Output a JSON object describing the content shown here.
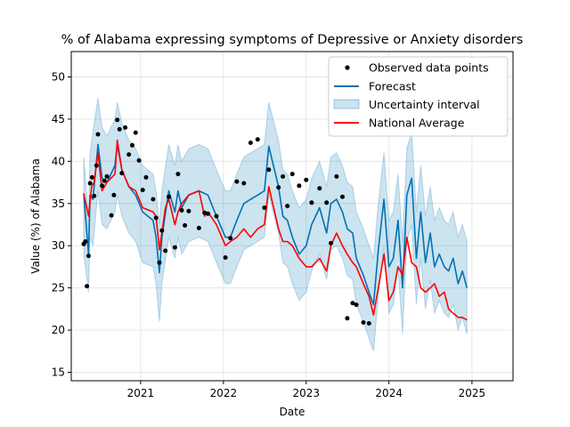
{
  "chart_data": {
    "type": "line",
    "title": "% of Alabama expressing symptoms of Depressive or Anxiety disorders",
    "xlabel": "Date",
    "ylabel": "Value (%) of Alabama",
    "xlim": [
      "2020-03-01",
      "2025-07-01"
    ],
    "ylim": [
      14,
      53
    ],
    "x_ticks": [
      "2021-01-01",
      "2022-01-01",
      "2023-01-01",
      "2024-01-01",
      "2025-01-01"
    ],
    "x_tick_labels": [
      "2021",
      "2022",
      "2023",
      "2024",
      "2025"
    ],
    "y_ticks": [
      15,
      20,
      25,
      30,
      35,
      40,
      45,
      50
    ],
    "y_tick_labels": [
      "15",
      "20",
      "25",
      "30",
      "35",
      "40",
      "45",
      "50"
    ],
    "grid": true,
    "legend_position": "top-right",
    "legend": [
      "Observed data points",
      "Forecast",
      "Uncertainty interval",
      "National Average"
    ],
    "colors": {
      "observed": "#000000",
      "forecast": "#0072b2",
      "interval": "#0072b2",
      "national": "#ff0000"
    },
    "observed": [
      [
        "2020-04-25",
        30.2
      ],
      [
        "2020-05-02",
        30.5
      ],
      [
        "2020-05-09",
        25.2
      ],
      [
        "2020-05-16",
        28.8
      ],
      [
        "2020-05-23",
        37.4
      ],
      [
        "2020-06-01",
        38.1
      ],
      [
        "2020-06-10",
        35.9
      ],
      [
        "2020-06-20",
        39.5
      ],
      [
        "2020-06-27",
        43.2
      ],
      [
        "2020-07-15",
        37.1
      ],
      [
        "2020-07-25",
        37.7
      ],
      [
        "2020-08-05",
        38.2
      ],
      [
        "2020-08-25",
        33.6
      ],
      [
        "2020-09-05",
        36.0
      ],
      [
        "2020-09-20",
        44.9
      ],
      [
        "2020-09-30",
        43.8
      ],
      [
        "2020-10-10",
        38.6
      ],
      [
        "2020-10-25",
        44.0
      ],
      [
        "2020-11-10",
        40.8
      ],
      [
        "2020-11-25",
        41.9
      ],
      [
        "2020-12-10",
        43.4
      ],
      [
        "2020-12-25",
        40.1
      ],
      [
        "2021-01-10",
        36.6
      ],
      [
        "2021-01-25",
        38.1
      ],
      [
        "2021-02-25",
        35.5
      ],
      [
        "2021-03-10",
        33.3
      ],
      [
        "2021-03-25",
        28.0
      ],
      [
        "2021-04-05",
        31.8
      ],
      [
        "2021-04-20",
        29.4
      ],
      [
        "2021-05-05",
        35.8
      ],
      [
        "2021-06-01",
        29.8
      ],
      [
        "2021-06-15",
        38.5
      ],
      [
        "2021-07-01",
        34.2
      ],
      [
        "2021-07-15",
        32.4
      ],
      [
        "2021-08-01",
        34.1
      ],
      [
        "2021-09-15",
        32.1
      ],
      [
        "2021-10-10",
        33.9
      ],
      [
        "2021-10-25",
        33.8
      ],
      [
        "2021-12-01",
        33.5
      ],
      [
        "2022-01-10",
        28.6
      ],
      [
        "2022-02-01",
        30.9
      ],
      [
        "2022-03-01",
        37.6
      ],
      [
        "2022-04-01",
        37.4
      ],
      [
        "2022-05-01",
        42.2
      ],
      [
        "2022-06-01",
        42.6
      ],
      [
        "2022-07-01",
        34.5
      ],
      [
        "2022-07-20",
        39.0
      ],
      [
        "2022-09-01",
        36.9
      ],
      [
        "2022-09-20",
        38.2
      ],
      [
        "2022-10-10",
        34.7
      ],
      [
        "2022-11-01",
        38.5
      ],
      [
        "2022-12-01",
        37.1
      ],
      [
        "2023-01-01",
        37.8
      ],
      [
        "2023-01-25",
        35.1
      ],
      [
        "2023-03-01",
        36.8
      ],
      [
        "2023-04-01",
        35.1
      ],
      [
        "2023-04-20",
        30.3
      ],
      [
        "2023-05-15",
        38.2
      ],
      [
        "2023-06-10",
        35.8
      ],
      [
        "2023-07-01",
        21.4
      ],
      [
        "2023-07-25",
        23.2
      ],
      [
        "2023-08-10",
        23.0
      ],
      [
        "2023-09-10",
        20.9
      ],
      [
        "2023-10-05",
        20.8
      ]
    ],
    "forecast": [
      [
        "2020-04-25",
        36.2
      ],
      [
        "2020-05-16",
        29.0
      ],
      [
        "2020-05-23",
        36.0
      ],
      [
        "2020-06-05",
        35.5
      ],
      [
        "2020-06-27",
        42.0
      ],
      [
        "2020-07-15",
        38.0
      ],
      [
        "2020-08-05",
        37.5
      ],
      [
        "2020-09-10",
        39.5
      ],
      [
        "2020-09-20",
        42.0
      ],
      [
        "2020-10-10",
        39.0
      ],
      [
        "2020-11-10",
        37.0
      ],
      [
        "2020-12-10",
        36.0
      ],
      [
        "2021-01-10",
        34.0
      ],
      [
        "2021-02-25",
        33.0
      ],
      [
        "2021-03-10",
        31.0
      ],
      [
        "2021-03-25",
        26.8
      ],
      [
        "2021-04-05",
        31.0
      ],
      [
        "2021-05-05",
        36.5
      ],
      [
        "2021-06-01",
        34.0
      ],
      [
        "2021-06-15",
        36.5
      ],
      [
        "2021-07-01",
        34.5
      ],
      [
        "2021-08-01",
        36.0
      ],
      [
        "2021-09-15",
        36.5
      ],
      [
        "2021-10-25",
        36.0
      ],
      [
        "2021-12-01",
        33.5
      ],
      [
        "2022-01-10",
        31.0
      ],
      [
        "2022-02-01",
        31.0
      ],
      [
        "2022-03-01",
        33.0
      ],
      [
        "2022-04-01",
        35.0
      ],
      [
        "2022-05-01",
        35.5
      ],
      [
        "2022-06-01",
        36.0
      ],
      [
        "2022-07-01",
        36.5
      ],
      [
        "2022-07-20",
        41.8
      ],
      [
        "2022-09-01",
        37.0
      ],
      [
        "2022-09-20",
        33.5
      ],
      [
        "2022-10-10",
        33.0
      ],
      [
        "2022-11-01",
        31.0
      ],
      [
        "2022-12-01",
        29.0
      ],
      [
        "2023-01-01",
        30.0
      ],
      [
        "2023-01-25",
        32.5
      ],
      [
        "2023-03-01",
        34.5
      ],
      [
        "2023-04-01",
        31.5
      ],
      [
        "2023-04-20",
        35.0
      ],
      [
        "2023-05-15",
        35.5
      ],
      [
        "2023-06-10",
        34.0
      ],
      [
        "2023-07-01",
        32.0
      ],
      [
        "2023-07-25",
        31.5
      ],
      [
        "2023-08-10",
        28.5
      ],
      [
        "2023-09-10",
        26.5
      ],
      [
        "2023-10-05",
        24.5
      ],
      [
        "2023-10-25",
        23.0
      ],
      [
        "2023-11-15",
        29.5
      ],
      [
        "2023-12-10",
        35.5
      ],
      [
        "2024-01-01",
        27.5
      ],
      [
        "2024-01-20",
        28.5
      ],
      [
        "2024-02-10",
        33.0
      ],
      [
        "2024-03-01",
        25.0
      ],
      [
        "2024-03-20",
        36.0
      ],
      [
        "2024-04-10",
        38.0
      ],
      [
        "2024-05-01",
        28.5
      ],
      [
        "2024-05-20",
        34.0
      ],
      [
        "2024-06-10",
        28.0
      ],
      [
        "2024-07-01",
        31.5
      ],
      [
        "2024-07-20",
        27.5
      ],
      [
        "2024-08-10",
        29.0
      ],
      [
        "2024-09-01",
        27.5
      ],
      [
        "2024-09-20",
        27.0
      ],
      [
        "2024-10-10",
        28.5
      ],
      [
        "2024-11-01",
        25.5
      ],
      [
        "2024-11-20",
        27.0
      ],
      [
        "2024-12-10",
        25.0
      ]
    ],
    "interval": [
      [
        "2020-04-25",
        29.0,
        40.5
      ],
      [
        "2020-05-16",
        24.5,
        33.5
      ],
      [
        "2020-05-23",
        31.0,
        41.0
      ],
      [
        "2020-06-05",
        30.0,
        43.5
      ],
      [
        "2020-06-27",
        36.5,
        47.5
      ],
      [
        "2020-07-15",
        32.5,
        44.0
      ],
      [
        "2020-08-05",
        32.0,
        43.0
      ],
      [
        "2020-09-10",
        34.0,
        45.0
      ],
      [
        "2020-09-20",
        36.0,
        47.0
      ],
      [
        "2020-10-10",
        33.5,
        44.5
      ],
      [
        "2020-11-10",
        31.5,
        42.5
      ],
      [
        "2020-12-10",
        30.5,
        41.5
      ],
      [
        "2021-01-10",
        28.0,
        39.5
      ],
      [
        "2021-02-25",
        27.5,
        38.5
      ],
      [
        "2021-03-10",
        25.5,
        36.5
      ],
      [
        "2021-03-25",
        21.0,
        32.5
      ],
      [
        "2021-04-05",
        25.5,
        36.5
      ],
      [
        "2021-05-05",
        31.0,
        42.0
      ],
      [
        "2021-06-01",
        28.5,
        39.5
      ],
      [
        "2021-06-15",
        31.0,
        42.0
      ],
      [
        "2021-07-01",
        29.0,
        40.0
      ],
      [
        "2021-08-01",
        30.5,
        41.5
      ],
      [
        "2021-09-15",
        31.0,
        42.0
      ],
      [
        "2021-10-25",
        30.5,
        41.5
      ],
      [
        "2021-12-01",
        28.0,
        39.0
      ],
      [
        "2022-01-10",
        25.5,
        36.5
      ],
      [
        "2022-02-01",
        25.5,
        36.5
      ],
      [
        "2022-03-01",
        27.5,
        38.5
      ],
      [
        "2022-04-01",
        29.5,
        40.5
      ],
      [
        "2022-05-01",
        30.0,
        41.0
      ],
      [
        "2022-06-01",
        30.5,
        41.5
      ],
      [
        "2022-07-01",
        31.0,
        42.0
      ],
      [
        "2022-07-20",
        36.0,
        47.0
      ],
      [
        "2022-09-01",
        31.5,
        42.5
      ],
      [
        "2022-09-20",
        28.0,
        39.0
      ],
      [
        "2022-10-10",
        27.5,
        38.5
      ],
      [
        "2022-11-01",
        25.5,
        36.5
      ],
      [
        "2022-12-01",
        23.5,
        34.5
      ],
      [
        "2023-01-01",
        24.5,
        35.5
      ],
      [
        "2023-01-25",
        27.0,
        38.0
      ],
      [
        "2023-03-01",
        29.0,
        40.0
      ],
      [
        "2023-04-01",
        26.0,
        37.0
      ],
      [
        "2023-04-20",
        29.5,
        40.5
      ],
      [
        "2023-05-15",
        30.0,
        41.0
      ],
      [
        "2023-06-10",
        28.5,
        39.5
      ],
      [
        "2023-07-01",
        26.5,
        37.5
      ],
      [
        "2023-07-25",
        26.0,
        37.0
      ],
      [
        "2023-08-10",
        23.0,
        34.0
      ],
      [
        "2023-09-10",
        21.0,
        32.0
      ],
      [
        "2023-10-05",
        19.0,
        30.0
      ],
      [
        "2023-10-25",
        17.5,
        28.5
      ],
      [
        "2023-11-15",
        24.0,
        35.0
      ],
      [
        "2023-12-10",
        30.0,
        41.0
      ],
      [
        "2024-01-01",
        22.0,
        33.0
      ],
      [
        "2024-01-20",
        23.0,
        34.0
      ],
      [
        "2024-02-10",
        27.5,
        38.5
      ],
      [
        "2024-03-01",
        19.5,
        30.5
      ],
      [
        "2024-03-20",
        30.5,
        41.5
      ],
      [
        "2024-04-10",
        32.5,
        43.5
      ],
      [
        "2024-05-01",
        23.0,
        34.0
      ],
      [
        "2024-05-20",
        28.5,
        39.5
      ],
      [
        "2024-06-10",
        22.5,
        33.5
      ],
      [
        "2024-07-01",
        26.0,
        37.0
      ],
      [
        "2024-07-20",
        22.0,
        33.0
      ],
      [
        "2024-08-10",
        23.5,
        34.5
      ],
      [
        "2024-09-01",
        22.0,
        33.0
      ],
      [
        "2024-09-20",
        21.5,
        32.5
      ],
      [
        "2024-10-10",
        23.0,
        34.0
      ],
      [
        "2024-11-01",
        20.0,
        31.0
      ],
      [
        "2024-11-20",
        21.5,
        32.5
      ],
      [
        "2024-12-10",
        19.5,
        30.5
      ]
    ],
    "national": [
      [
        "2020-04-25",
        36.2
      ],
      [
        "2020-05-16",
        33.5
      ],
      [
        "2020-05-30",
        37.0
      ],
      [
        "2020-06-10",
        37.5
      ],
      [
        "2020-06-27",
        41.0
      ],
      [
        "2020-07-15",
        36.5
      ],
      [
        "2020-08-05",
        37.5
      ],
      [
        "2020-09-10",
        38.5
      ],
      [
        "2020-09-20",
        42.5
      ],
      [
        "2020-10-10",
        39.0
      ],
      [
        "2020-11-10",
        37.0
      ],
      [
        "2020-12-10",
        36.5
      ],
      [
        "2021-01-10",
        34.5
      ],
      [
        "2021-02-25",
        34.0
      ],
      [
        "2021-03-10",
        33.5
      ],
      [
        "2021-03-25",
        29.5
      ],
      [
        "2021-04-20",
        34.5
      ],
      [
        "2021-05-05",
        35.5
      ],
      [
        "2021-06-01",
        32.5
      ],
      [
        "2021-06-15",
        34.0
      ],
      [
        "2021-07-01",
        35.0
      ],
      [
        "2021-08-01",
        36.0
      ],
      [
        "2021-09-15",
        36.5
      ],
      [
        "2021-10-10",
        33.5
      ],
      [
        "2021-10-25",
        34.0
      ],
      [
        "2021-12-01",
        32.5
      ],
      [
        "2022-01-10",
        30.0
      ],
      [
        "2022-02-01",
        30.5
      ],
      [
        "2022-03-01",
        31.0
      ],
      [
        "2022-04-01",
        32.0
      ],
      [
        "2022-05-01",
        31.0
      ],
      [
        "2022-06-01",
        32.0
      ],
      [
        "2022-07-01",
        32.5
      ],
      [
        "2022-07-20",
        37.0
      ],
      [
        "2022-09-01",
        32.0
      ],
      [
        "2022-09-20",
        30.5
      ],
      [
        "2022-10-10",
        30.5
      ],
      [
        "2022-11-01",
        30.0
      ],
      [
        "2022-12-01",
        28.5
      ],
      [
        "2023-01-01",
        27.5
      ],
      [
        "2023-01-25",
        27.5
      ],
      [
        "2023-03-01",
        28.5
      ],
      [
        "2023-04-01",
        27.0
      ],
      [
        "2023-04-20",
        30.0
      ],
      [
        "2023-05-15",
        31.5
      ],
      [
        "2023-06-10",
        30.0
      ],
      [
        "2023-07-01",
        29.0
      ],
      [
        "2023-07-25",
        28.0
      ],
      [
        "2023-08-10",
        27.5
      ],
      [
        "2023-09-10",
        25.5
      ],
      [
        "2023-10-05",
        24.0
      ],
      [
        "2023-10-25",
        21.8
      ],
      [
        "2023-11-15",
        25.0
      ],
      [
        "2023-12-10",
        29.0
      ],
      [
        "2024-01-01",
        23.5
      ],
      [
        "2024-01-20",
        24.5
      ],
      [
        "2024-02-10",
        27.5
      ],
      [
        "2024-03-01",
        26.5
      ],
      [
        "2024-03-20",
        31.0
      ],
      [
        "2024-04-10",
        28.0
      ],
      [
        "2024-05-01",
        27.5
      ],
      [
        "2024-05-20",
        25.0
      ],
      [
        "2024-06-10",
        24.5
      ],
      [
        "2024-07-01",
        25.0
      ],
      [
        "2024-07-20",
        25.5
      ],
      [
        "2024-08-10",
        24.0
      ],
      [
        "2024-09-01",
        24.5
      ],
      [
        "2024-09-20",
        22.5
      ],
      [
        "2024-10-10",
        22.0
      ],
      [
        "2024-11-01",
        21.5
      ],
      [
        "2024-11-20",
        21.5
      ],
      [
        "2024-12-10",
        21.2
      ]
    ]
  }
}
